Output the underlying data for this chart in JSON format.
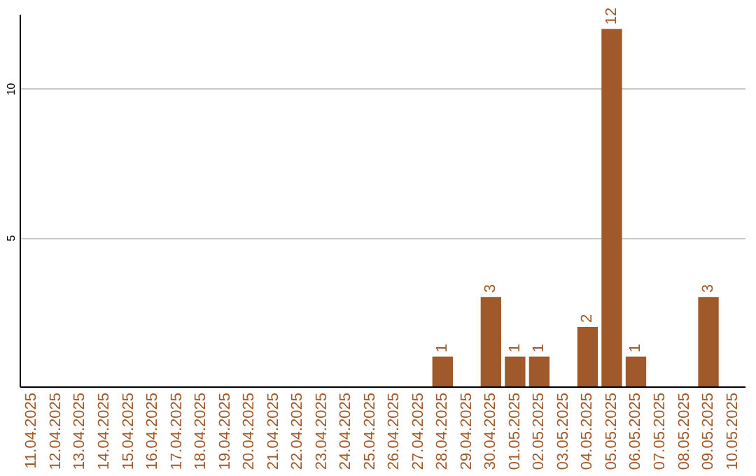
{
  "chart_data": {
    "type": "bar",
    "categories": [
      "11.04.2025",
      "12.04.2025",
      "13.04.2025",
      "14.04.2025",
      "15.04.2025",
      "16.04.2025",
      "17.04.2025",
      "18.04.2025",
      "19.04.2025",
      "20.04.2025",
      "21.04.2025",
      "22.04.2025",
      "23.04.2025",
      "24.04.2025",
      "25.04.2025",
      "26.04.2025",
      "27.04.2025",
      "28.04.2025",
      "29.04.2025",
      "30.04.2025",
      "01.05.2025",
      "02.05.2025",
      "03.05.2025",
      "04.05.2025",
      "05.05.2025",
      "06.05.2025",
      "07.05.2025",
      "08.05.2025",
      "09.05.2025",
      "10.05.2025"
    ],
    "values": [
      0,
      0,
      0,
      0,
      0,
      0,
      0,
      0,
      0,
      0,
      0,
      0,
      0,
      0,
      0,
      0,
      0,
      1,
      0,
      3,
      1,
      1,
      0,
      2,
      12,
      1,
      0,
      0,
      3,
      0
    ],
    "value_labels": [
      null,
      null,
      null,
      null,
      null,
      null,
      null,
      null,
      null,
      null,
      null,
      null,
      null,
      null,
      null,
      null,
      null,
      "1",
      null,
      "3",
      "1",
      "1",
      null,
      "2",
      "12",
      "1",
      null,
      null,
      "3",
      null
    ],
    "color": "#a0592a",
    "ylim": [
      0,
      12.5
    ],
    "yticks": [
      5,
      10
    ],
    "grid": "y"
  }
}
